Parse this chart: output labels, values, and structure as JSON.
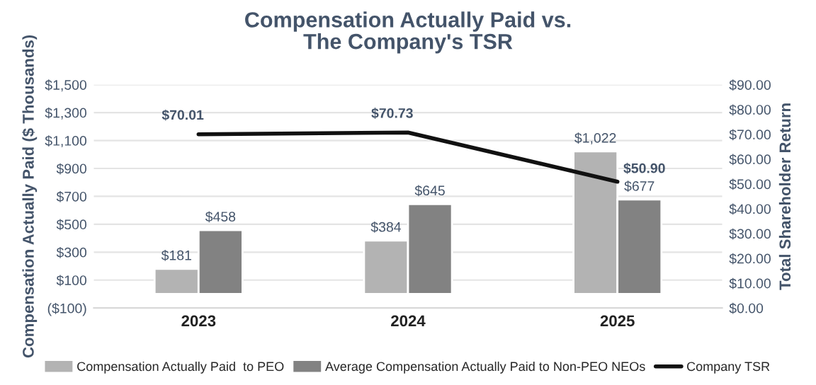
{
  "chart_data": {
    "type": "bar",
    "title": "Compensation Actually Paid vs.\nThe Company's TSR",
    "ylabel": "Compensation Actually Paid ($ Thousands)",
    "y2label": "Total Shareholder Return",
    "categories": [
      "2023",
      "2024",
      "2025"
    ],
    "series": [
      {
        "name": "Compensation Actually Paid  to PEO",
        "color": "#b3b3b3",
        "values": [
          181,
          384,
          1022
        ],
        "value_labels": [
          "$181",
          "$384",
          "$1,022"
        ]
      },
      {
        "name": "Average Compensation Actually Paid to Non-PEO NEOs",
        "color": "#828282",
        "values": [
          458,
          645,
          677
        ],
        "value_labels": [
          "$458",
          "$645",
          "$677"
        ]
      },
      {
        "name": "Company TSR",
        "type": "line",
        "axis": "y2",
        "color": "#111111",
        "values": [
          70.01,
          70.73,
          50.9
        ],
        "value_labels": [
          "$70.01",
          "$70.73",
          "$50.90"
        ]
      }
    ],
    "ylim": [
      -100,
      1500
    ],
    "yticks": [
      {
        "value": -100,
        "label": "($100)"
      },
      {
        "value": 100,
        "label": "$100"
      },
      {
        "value": 300,
        "label": "$300"
      },
      {
        "value": 500,
        "label": "$500"
      },
      {
        "value": 700,
        "label": "$700"
      },
      {
        "value": 900,
        "label": "$900"
      },
      {
        "value": 1100,
        "label": "$1,100"
      },
      {
        "value": 1300,
        "label": "$1,300"
      },
      {
        "value": 1500,
        "label": "$1,500"
      }
    ],
    "y2lim": [
      0,
      90
    ],
    "y2ticks": [
      {
        "value": 0,
        "label": "$0.00"
      },
      {
        "value": 10,
        "label": "$10.00"
      },
      {
        "value": 20,
        "label": "$20.00"
      },
      {
        "value": 30,
        "label": "$30.00"
      },
      {
        "value": 40,
        "label": "$40.00"
      },
      {
        "value": 50,
        "label": "$50.00"
      },
      {
        "value": 60,
        "label": "$60.00"
      },
      {
        "value": 70,
        "label": "$70.00"
      },
      {
        "value": 80,
        "label": "$80.00"
      },
      {
        "value": 90,
        "label": "$90.00"
      }
    ],
    "grid": "y",
    "legend": "bottom"
  }
}
